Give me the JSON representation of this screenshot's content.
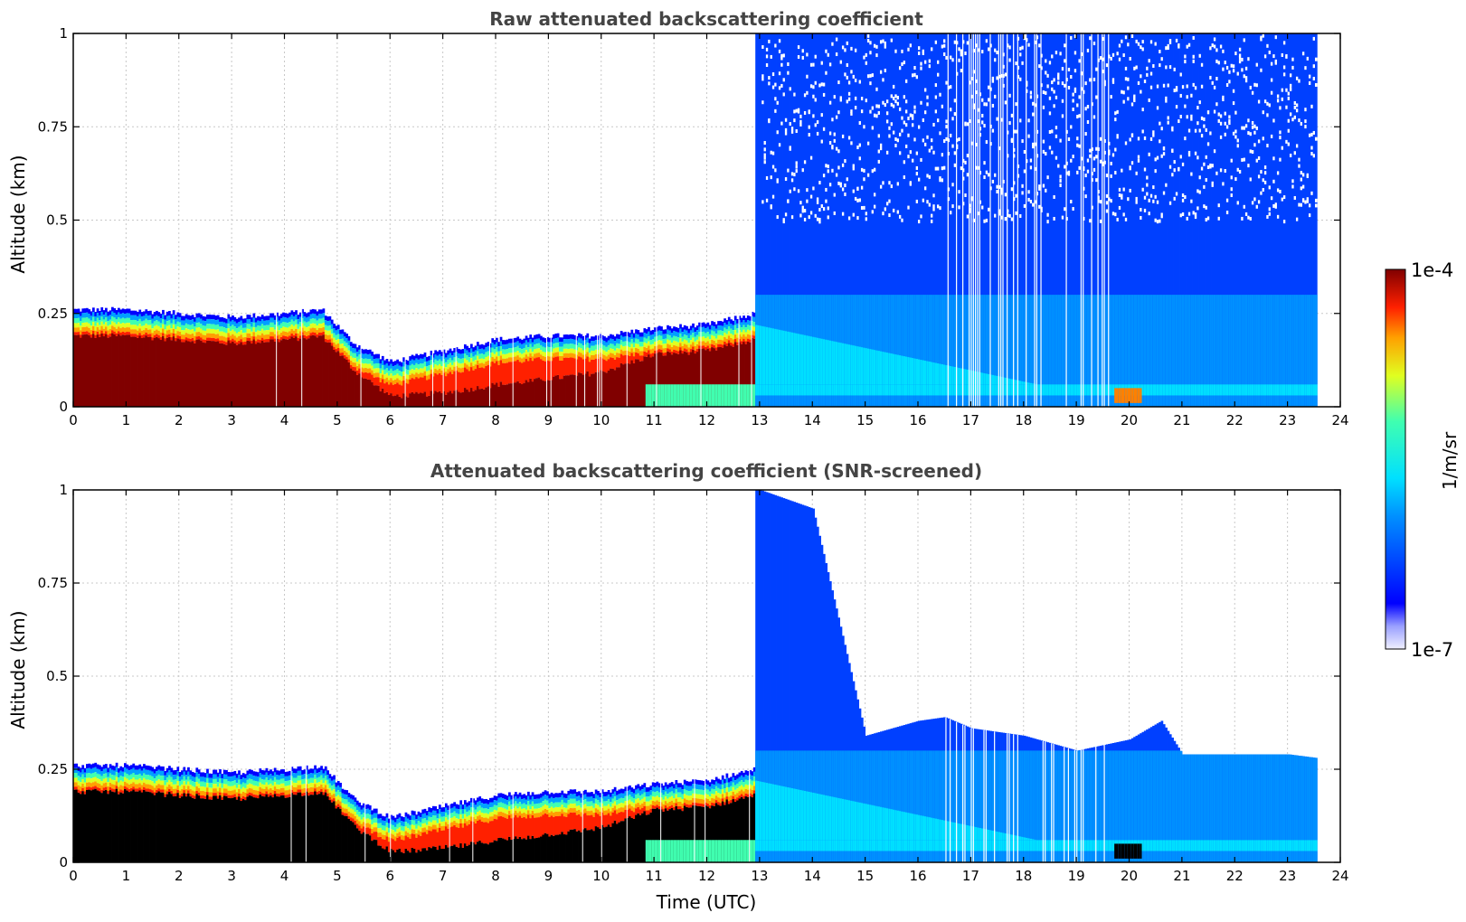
{
  "chart_data": [
    {
      "type": "heatmap",
      "title": "Raw attenuated backscattering coefficient",
      "xlabel": "",
      "ylabel": "Altitude (km)",
      "xlim": [
        0,
        24
      ],
      "ylim": [
        0,
        1
      ],
      "xticks": [
        "0",
        "1",
        "2",
        "3",
        "4",
        "5",
        "6",
        "7",
        "8",
        "9",
        "10",
        "11",
        "12",
        "13",
        "14",
        "15",
        "16",
        "17",
        "18",
        "19",
        "20",
        "21",
        "22",
        "23",
        "24"
      ],
      "yticks": [
        "0",
        "0.25",
        "0.5",
        "0.75",
        "1"
      ],
      "grid": true,
      "description_data": {
        "data_end_utc": 23.55,
        "dense_layer_top_km_by_hour": [
          [
            0,
            0.26
          ],
          [
            1,
            0.26
          ],
          [
            2,
            0.25
          ],
          [
            3,
            0.24
          ],
          [
            4,
            0.25
          ],
          [
            4.7,
            0.26
          ],
          [
            5.3,
            0.17
          ],
          [
            6,
            0.12
          ],
          [
            7,
            0.15
          ],
          [
            8,
            0.18
          ],
          [
            9,
            0.19
          ],
          [
            10,
            0.19
          ],
          [
            11,
            0.21
          ],
          [
            12,
            0.22
          ],
          [
            12.9,
            0.25
          ]
        ],
        "noise_onset_utc": 12.9,
        "surface_layer_km": [
          0.02,
          0.06
        ]
      }
    },
    {
      "type": "heatmap",
      "title": "Attenuated backscattering coefficient (SNR-screened)",
      "xlabel": "Time (UTC)",
      "ylabel": "Altitude (km)",
      "xlim": [
        0,
        24
      ],
      "ylim": [
        0,
        1
      ],
      "xticks": [
        "0",
        "1",
        "2",
        "3",
        "4",
        "5",
        "6",
        "7",
        "8",
        "9",
        "10",
        "11",
        "12",
        "13",
        "14",
        "15",
        "16",
        "17",
        "18",
        "19",
        "20",
        "21",
        "22",
        "23",
        "24"
      ],
      "yticks": [
        "0",
        "0.25",
        "0.5",
        "0.75",
        "1"
      ],
      "grid": true,
      "description_data": {
        "data_end_utc": 23.55,
        "screened_top_km_by_hour": [
          [
            13,
            1.0
          ],
          [
            14,
            0.95
          ],
          [
            15,
            0.34
          ],
          [
            16,
            0.38
          ],
          [
            16.5,
            0.39
          ],
          [
            17,
            0.36
          ],
          [
            18,
            0.34
          ],
          [
            19,
            0.3
          ],
          [
            20,
            0.33
          ],
          [
            20.6,
            0.38
          ],
          [
            21,
            0.29
          ],
          [
            22,
            0.29
          ],
          [
            23,
            0.29
          ],
          [
            23.55,
            0.28
          ]
        ],
        "saturated_color": "#000000"
      }
    }
  ],
  "colorbar": {
    "label": "1/m/sr",
    "max_label": "1e-4",
    "min_label": "1e-7",
    "scale": "log",
    "range": [
      1e-07,
      0.0001
    ]
  }
}
